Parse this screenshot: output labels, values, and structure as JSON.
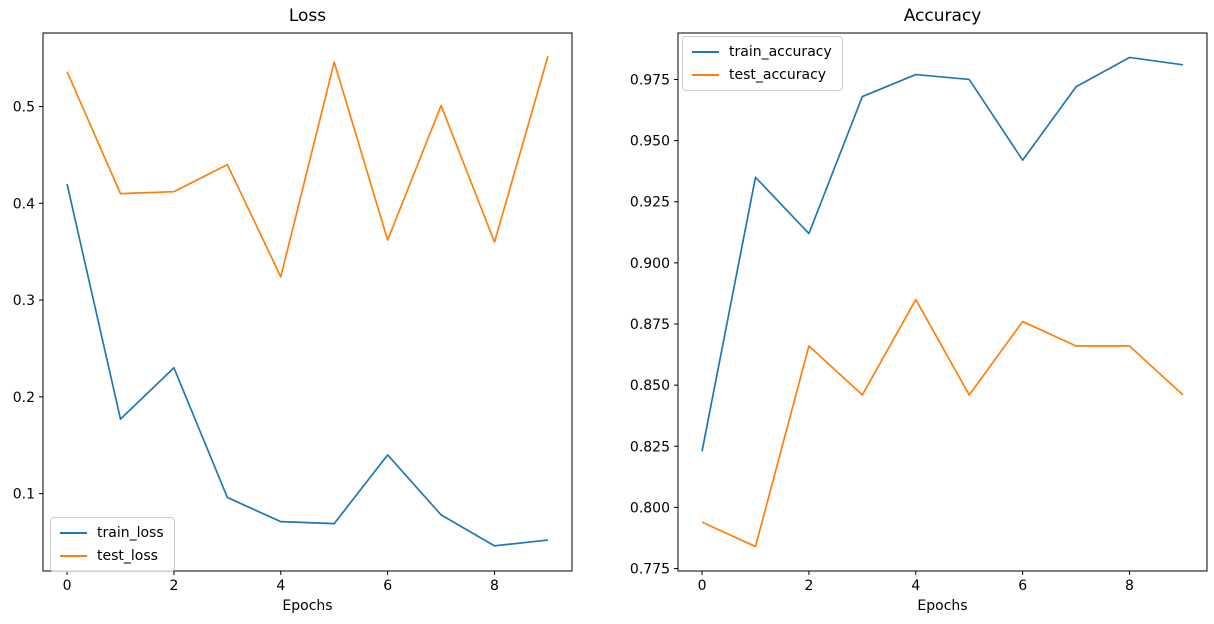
{
  "figure": {
    "background": "#ffffff",
    "text_color": "#000000",
    "spine_color": "#000000"
  },
  "chart_data": [
    {
      "type": "line",
      "title": "Loss",
      "xlabel": "Epochs",
      "ylabel": "",
      "grid": false,
      "legend_position": "lower-left",
      "x": [
        0,
        1,
        2,
        3,
        4,
        5,
        6,
        7,
        8,
        9
      ],
      "series": [
        {
          "name": "train_loss",
          "color": "#1f77b4",
          "values": [
            0.42,
            0.177,
            0.23,
            0.096,
            0.071,
            0.069,
            0.14,
            0.078,
            0.046,
            0.052
          ]
        },
        {
          "name": "test_loss",
          "color": "#ff7f0e",
          "values": [
            0.536,
            0.41,
            0.412,
            0.44,
            0.324,
            0.546,
            0.362,
            0.501,
            0.36,
            0.552
          ]
        }
      ],
      "xlim": [
        -0.45,
        9.45
      ],
      "ylim": [
        0.02,
        0.576
      ],
      "xticks": [
        0,
        2,
        4,
        6,
        8
      ],
      "xtick_labels": [
        "0",
        "2",
        "4",
        "6",
        "8"
      ],
      "yticks": [
        0.1,
        0.2,
        0.3,
        0.4,
        0.5
      ],
      "ytick_labels": [
        "0.1",
        "0.2",
        "0.3",
        "0.4",
        "0.5"
      ]
    },
    {
      "type": "line",
      "title": "Accuracy",
      "xlabel": "Epochs",
      "ylabel": "",
      "grid": false,
      "legend_position": "upper-left",
      "x": [
        0,
        1,
        2,
        3,
        4,
        5,
        6,
        7,
        8,
        9
      ],
      "series": [
        {
          "name": "train_accuracy",
          "color": "#1f77b4",
          "values": [
            0.823,
            0.935,
            0.912,
            0.968,
            0.977,
            0.975,
            0.942,
            0.972,
            0.984,
            0.981
          ]
        },
        {
          "name": "test_accuracy",
          "color": "#ff7f0e",
          "values": [
            0.794,
            0.784,
            0.866,
            0.846,
            0.885,
            0.846,
            0.876,
            0.866,
            0.866,
            0.846
          ]
        }
      ],
      "xlim": [
        -0.45,
        9.45
      ],
      "ylim": [
        0.774,
        0.994
      ],
      "xticks": [
        0,
        2,
        4,
        6,
        8
      ],
      "xtick_labels": [
        "0",
        "2",
        "4",
        "6",
        "8"
      ],
      "yticks": [
        0.775,
        0.8,
        0.825,
        0.85,
        0.875,
        0.9,
        0.925,
        0.95,
        0.975
      ],
      "ytick_labels": [
        "0.775",
        "0.800",
        "0.825",
        "0.850",
        "0.875",
        "0.900",
        "0.925",
        "0.950",
        "0.975"
      ]
    }
  ]
}
